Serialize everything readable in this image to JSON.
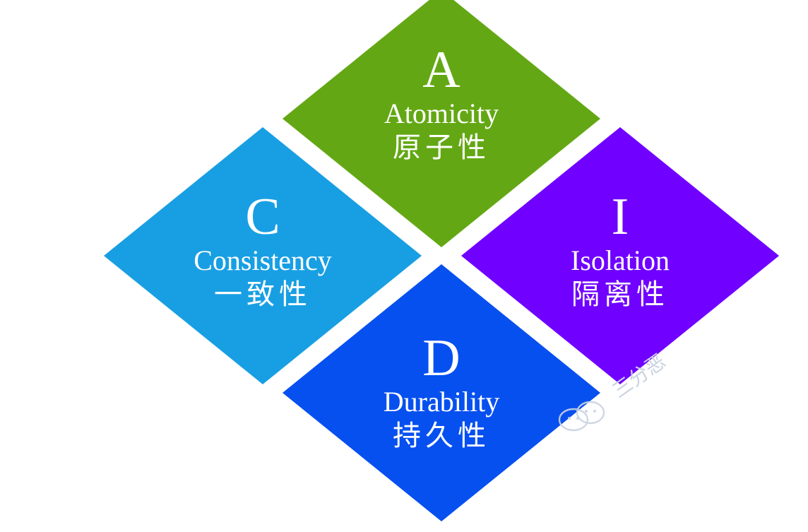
{
  "diagram": {
    "quadrants": [
      {
        "id": "a",
        "letter": "A",
        "english": "Atomicity",
        "chinese": "原子性",
        "color": "#63a814"
      },
      {
        "id": "c",
        "letter": "C",
        "english": "Consistency",
        "chinese": "一致性",
        "color": "#189fe3"
      },
      {
        "id": "i",
        "letter": "I",
        "english": "Isolation",
        "chinese": "隔离性",
        "color": "#7000ff"
      },
      {
        "id": "d",
        "letter": "D",
        "english": "Durability",
        "chinese": "持久性",
        "color": "#0750f0"
      }
    ]
  },
  "watermark": {
    "text": "三分恶",
    "icon": "wechat-icon"
  }
}
